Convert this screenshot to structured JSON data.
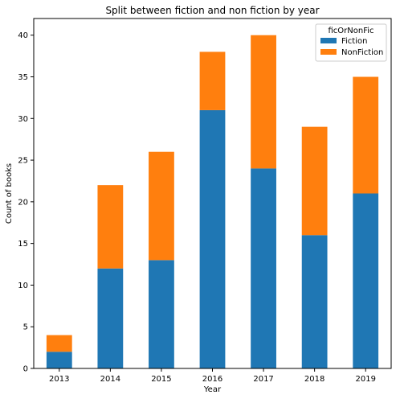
{
  "chart_data": {
    "type": "bar",
    "stacked": true,
    "title": "Split between fiction and non fiction by year",
    "xlabel": "Year",
    "ylabel": "Count of books",
    "categories": [
      "2013",
      "2014",
      "2015",
      "2016",
      "2017",
      "2018",
      "2019"
    ],
    "series": [
      {
        "name": "Fiction",
        "color": "#1f77b4",
        "values": [
          2,
          12,
          13,
          31,
          24,
          16,
          21
        ]
      },
      {
        "name": "NonFiction",
        "color": "#ff7f0e",
        "values": [
          2,
          10,
          13,
          7,
          16,
          13,
          14
        ]
      }
    ],
    "ylim": [
      0,
      42
    ],
    "yticks": [
      0,
      5,
      10,
      15,
      20,
      25,
      30,
      35,
      40
    ],
    "legend": {
      "title": "ficOrNonFic",
      "placement": "top-right"
    },
    "grid": false
  }
}
